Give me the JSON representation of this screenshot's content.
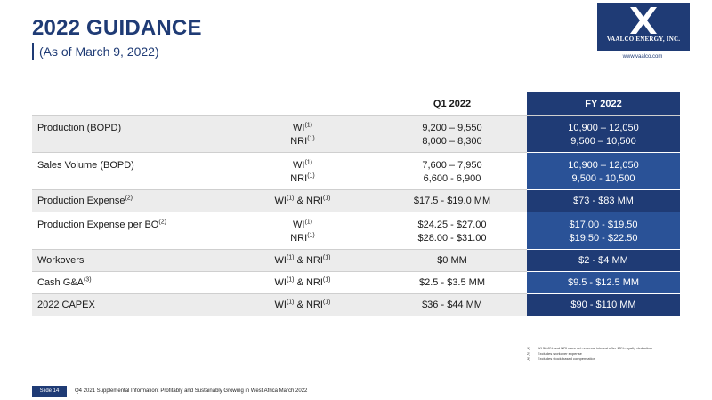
{
  "header": {
    "title": "2022 GUIDANCE",
    "subtitle": "(As of March 9, 2022)"
  },
  "logo": {
    "text": "VAALCO ENERGY, INC.",
    "website": "www.vaalco.com"
  },
  "table": {
    "col_q1": "Q1 2022",
    "col_fy": "FY 2022",
    "rows": [
      {
        "label": "Production (BOPD)",
        "basis": [
          "WI",
          "NRI"
        ],
        "q1": [
          "9,200 – 9,550",
          "8,000 – 8,300"
        ],
        "fy": [
          "10,900 – 12,050",
          "9,500 – 10,500"
        ]
      },
      {
        "label": "Sales Volume (BOPD)",
        "basis": [
          "WI",
          "NRI"
        ],
        "q1": [
          "7,600 – 7,950",
          "6,600 - 6,900"
        ],
        "fy": [
          "10,900 – 12,050",
          "9,500 - 10,500"
        ]
      },
      {
        "label": "Production Expense",
        "basis_wi": "WI",
        "basis_amp": " & NRI",
        "q1": "$17.5 - $19.0 MM",
        "fy": "$73 - $83 MM"
      },
      {
        "label": "Production Expense per BO",
        "basis": [
          "WI",
          "NRI"
        ],
        "q1": [
          "$24.25 - $27.00",
          "$28.00 - $31.00"
        ],
        "fy": [
          "$17.00 - $19.50",
          "$19.50 - $22.50"
        ]
      },
      {
        "label": "Workovers",
        "basis_wi": "WI",
        "basis_amp": " & NRI",
        "q1": "$0 MM",
        "fy": "$2 - $4 MM"
      },
      {
        "label": "Cash G&A",
        "basis_wi": "WI",
        "basis_amp": " & NRI",
        "q1": "$2.5 - $3.5 MM",
        "fy": "$9.5 - $12.5 MM"
      },
      {
        "label": "2022 CAPEX",
        "basis_wi": "WI",
        "basis_amp": " & NRI",
        "q1": "$36 - $44 MM",
        "fy": "$90 - $110 MM"
      }
    ],
    "sup1": "(1)",
    "sup2": "(2)",
    "sup3": "(3)"
  },
  "footnotes": [
    {
      "num": "1)",
      "text": "WI 58.8% and NRI uses net revenue interest after 13% royalty deduction"
    },
    {
      "num": "2)",
      "text": "Excludes workover expense"
    },
    {
      "num": "3)",
      "text": "Excludes stock-based compensation"
    }
  ],
  "footer": {
    "slide_number": "Slide 14",
    "text": "Q4 2021 Supplemental Information: Profitably and Sustainably Growing in West Africa March 2022"
  },
  "colors": {
    "navy": "#1f3b75",
    "blue": "#2a5297",
    "grey": "#ececec"
  }
}
